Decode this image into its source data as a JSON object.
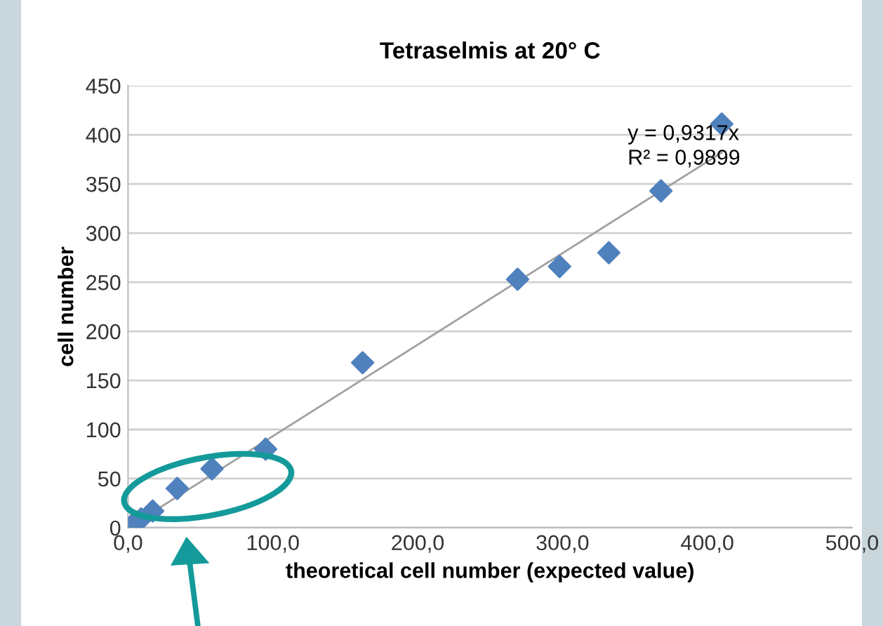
{
  "chart_data": {
    "type": "scatter",
    "title": "Tetraselmis at 20° C",
    "xlabel": "theoretical cell number (expected value)",
    "ylabel": "cell number",
    "series": [
      {
        "color": "#4f81bd",
        "marker": "diamond",
        "x": [
          3,
          9,
          17,
          34,
          58,
          95,
          162,
          269,
          298,
          332,
          368,
          410
        ],
        "values": [
          3,
          9,
          17,
          40,
          60,
          80,
          168,
          253,
          266,
          280,
          343,
          411
        ]
      },
      {
        "type": "line",
        "color": "#a0a0a0",
        "marker": "none",
        "x": [
          0,
          410
        ],
        "values": [
          0,
          382
        ]
      }
    ],
    "annotations": [
      "y = 0,9317x\nR² = 0,9899"
    ],
    "xlim": [
      0,
      500
    ],
    "ylim": [
      0,
      450
    ],
    "xticks": [
      {
        "value": 0,
        "label": "0,0"
      },
      {
        "value": 100,
        "label": "100,0"
      },
      {
        "value": 200,
        "label": "200,0"
      },
      {
        "value": 300,
        "label": "300,0"
      },
      {
        "value": 400,
        "label": "400,0"
      },
      {
        "value": 500,
        "label": "500,0"
      }
    ],
    "yticks": [
      0,
      50,
      100,
      150,
      200,
      250,
      300,
      350,
      400,
      450
    ],
    "grid": "y",
    "legend": false
  }
}
